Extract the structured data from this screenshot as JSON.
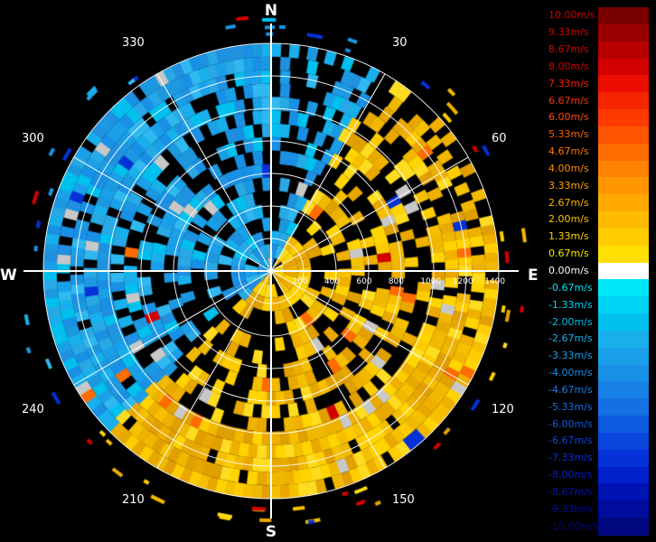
{
  "chart_data": {
    "type": "polar-heatmap",
    "title": "",
    "compass": {
      "north": "N",
      "east": "E",
      "south": "S",
      "west": "W"
    },
    "azimuth_ticks": [
      "30",
      "60",
      "120",
      "150",
      "210",
      "240",
      "300",
      "330"
    ],
    "range_ticks": [
      "200",
      "400",
      "600",
      "800",
      "1000",
      "1200",
      "1400"
    ],
    "range_max": 1500,
    "rings": 7,
    "azimuth_divisions": 12,
    "velocity_scale": {
      "unit": "m/s",
      "labels": [
        "10.00m/s",
        "9.33m/s",
        "8.67m/s",
        "8.00m/s",
        "7.33m/s",
        "6.67m/s",
        "6.00m/s",
        "5.33m/s",
        "4.67m/s",
        "4.00m/s",
        "3.33m/s",
        "2.67m/s",
        "2.00m/s",
        "1.33m/s",
        "0.67m/s",
        "0.00m/s",
        "-0.67m/s",
        "-1.33m/s",
        "-2.00m/s",
        "-2.67m/s",
        "-3.33m/s",
        "-4.00m/s",
        "-4.67m/s",
        "-5.33m/s",
        "-6.00m/s",
        "-6.67m/s",
        "-7.33m/s",
        "-8.00m/s",
        "-8.67m/s",
        "-9.33m/s",
        "-10.00m/s"
      ],
      "colors": [
        "#7a0000",
        "#9a0000",
        "#b80000",
        "#d40000",
        "#ea0d00",
        "#f52500",
        "#ff3a00",
        "#ff5500",
        "#ff6c00",
        "#ff8200",
        "#ff9600",
        "#ffa900",
        "#ffbb00",
        "#ffcc00",
        "#ffe000",
        "#ffffff",
        "#00e8f8",
        "#00d4f4",
        "#00c0ee",
        "#18b0ec",
        "#1aa0e8",
        "#1890e6",
        "#1780e4",
        "#1570e2",
        "#0e5ae0",
        "#0846dc",
        "#0432d8",
        "#0020cc",
        "#0014b4",
        "#000c9c",
        "#000880"
      ],
      "text_colors": [
        "#d40000",
        "#d40000",
        "#d40000",
        "#d40000",
        "#ff1a00",
        "#ff3000",
        "#ff4a00",
        "#ff6000",
        "#ff7800",
        "#ff8c00",
        "#ffa000",
        "#ffb400",
        "#ffc400",
        "#ffd400",
        "#ffe600",
        "#ffffff",
        "#00e8f8",
        "#00d4f4",
        "#00c0ee",
        "#18b0ec",
        "#1aa0e8",
        "#1890e6",
        "#1780e4",
        "#1570e2",
        "#0e5ae0",
        "#0846dc",
        "#0432d8",
        "#0020cc",
        "#0014b4",
        "#000c9c",
        "#000880"
      ]
    }
  }
}
